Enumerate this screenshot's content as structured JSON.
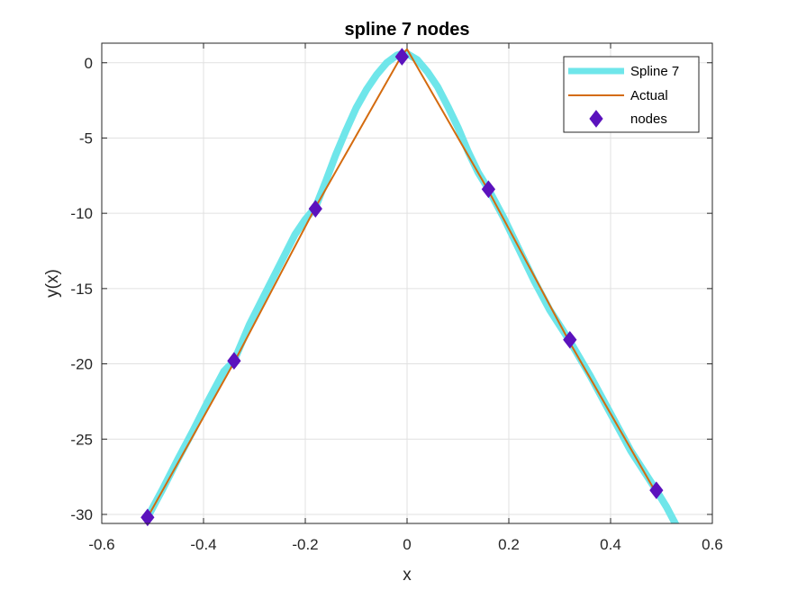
{
  "chart_data": {
    "type": "line",
    "title": "spline 7 nodes",
    "xlabel": "x",
    "ylabel": "y(x)",
    "xlim": [
      -0.6,
      0.6
    ],
    "ylim": [
      -30.6,
      1.3
    ],
    "xticks": [
      -0.6,
      -0.4,
      -0.2,
      0,
      0.2,
      0.4,
      0.6
    ],
    "xtick_labels": [
      "-0.6",
      "-0.4",
      "-0.2",
      "0",
      "0.2",
      "0.4",
      "0.6"
    ],
    "yticks": [
      0,
      -5,
      -10,
      -15,
      -20,
      -25,
      -30
    ],
    "ytick_labels": [
      "0",
      "-5",
      "-10",
      "-15",
      "-20",
      "-25",
      "-30"
    ],
    "grid": true,
    "legend_position": "top-right",
    "series": [
      {
        "name": "Spline 7",
        "style": "thick-line",
        "color": "#6fe6ea",
        "x": [
          -0.51,
          -0.48,
          -0.45,
          -0.42,
          -0.39,
          -0.36,
          -0.34,
          -0.31,
          -0.28,
          -0.25,
          -0.22,
          -0.2,
          -0.18,
          -0.16,
          -0.14,
          -0.12,
          -0.1,
          -0.08,
          -0.06,
          -0.04,
          -0.02,
          -0.01,
          0.0,
          0.02,
          0.04,
          0.06,
          0.08,
          0.1,
          0.12,
          0.14,
          0.16,
          0.19,
          0.22,
          0.25,
          0.28,
          0.32,
          0.36,
          0.4,
          0.44,
          0.49,
          0.51,
          0.53
        ],
        "y": [
          -30.2,
          -28.3,
          -26.3,
          -24.4,
          -22.4,
          -20.5,
          -19.8,
          -17.4,
          -15.4,
          -13.4,
          -11.4,
          -10.4,
          -9.6,
          -7.9,
          -6.1,
          -4.5,
          -3.0,
          -1.8,
          -0.8,
          0.0,
          0.5,
          0.6,
          0.6,
          0.2,
          -0.6,
          -1.6,
          -2.9,
          -4.3,
          -5.9,
          -7.3,
          -8.4,
          -10.3,
          -12.4,
          -14.5,
          -16.4,
          -18.5,
          -20.8,
          -23.3,
          -25.8,
          -28.4,
          -29.5,
          -30.8
        ]
      },
      {
        "name": "Actual",
        "style": "line",
        "color": "#d46b0f",
        "x": [
          -0.51,
          -0.34,
          -0.18,
          -0.01,
          0.0,
          0.16,
          0.32,
          0.49
        ],
        "y": [
          -30.2,
          -19.9,
          -9.6,
          0.5,
          0.9,
          -8.5,
          -18.6,
          -28.6
        ]
      },
      {
        "name": "nodes",
        "style": "markers",
        "marker": "diamond",
        "color": "#5b12bd",
        "x": [
          -0.51,
          -0.34,
          -0.18,
          -0.01,
          0.16,
          0.32,
          0.49
        ],
        "y": [
          -30.2,
          -19.8,
          -9.7,
          0.4,
          -8.4,
          -18.4,
          -28.4
        ]
      }
    ]
  }
}
